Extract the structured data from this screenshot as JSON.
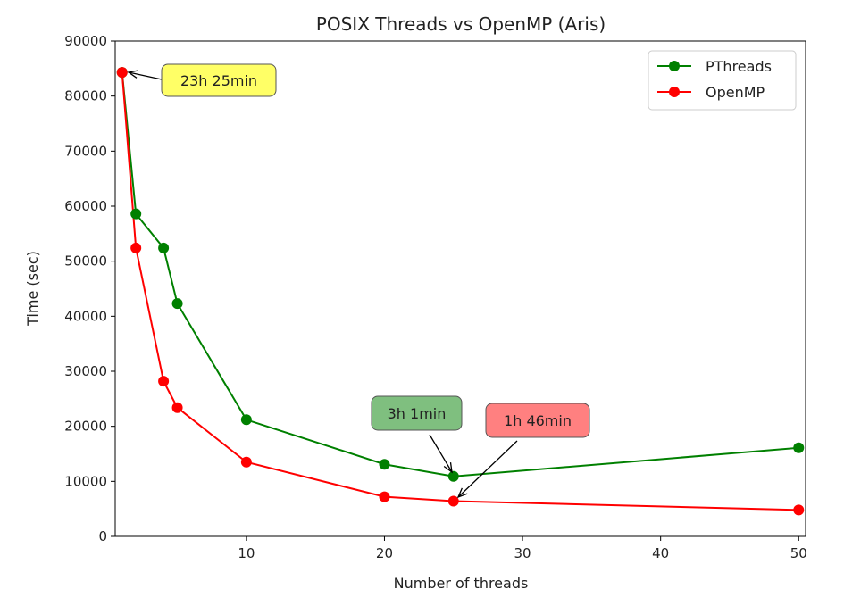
{
  "chart_data": {
    "type": "line",
    "title": "POSIX Threads vs OpenMP (Aris)",
    "xlabel": "Number of threads",
    "ylabel": "Time (sec)",
    "xlim": [
      0.5,
      50.5
    ],
    "ylim": [
      0,
      90000
    ],
    "xticks": [
      10,
      20,
      30,
      40,
      50
    ],
    "yticks": [
      0,
      10000,
      20000,
      30000,
      40000,
      50000,
      60000,
      70000,
      80000,
      90000
    ],
    "grid": false,
    "legend_position": "top-right",
    "series": [
      {
        "name": "PThreads",
        "color": "#008000",
        "x": [
          1,
          2,
          4,
          5,
          10,
          20,
          25,
          50
        ],
        "y": [
          84300,
          58600,
          52400,
          42300,
          21200,
          13100,
          10900,
          16100
        ]
      },
      {
        "name": "OpenMP",
        "color": "#ff0000",
        "x": [
          1,
          2,
          4,
          5,
          10,
          20,
          25,
          50
        ],
        "y": [
          84300,
          52400,
          28200,
          23400,
          13500,
          7200,
          6400,
          4800
        ]
      }
    ],
    "annotations": [
      {
        "text": "23h 25min",
        "x": 1,
        "y": 84300,
        "color": "#ffff66"
      },
      {
        "text": "3h 1min",
        "x": 25,
        "y": 10900,
        "color": "#7fbf7f"
      },
      {
        "text": "1h 46min",
        "x": 25,
        "y": 6400,
        "color": "#ff8080"
      }
    ]
  }
}
